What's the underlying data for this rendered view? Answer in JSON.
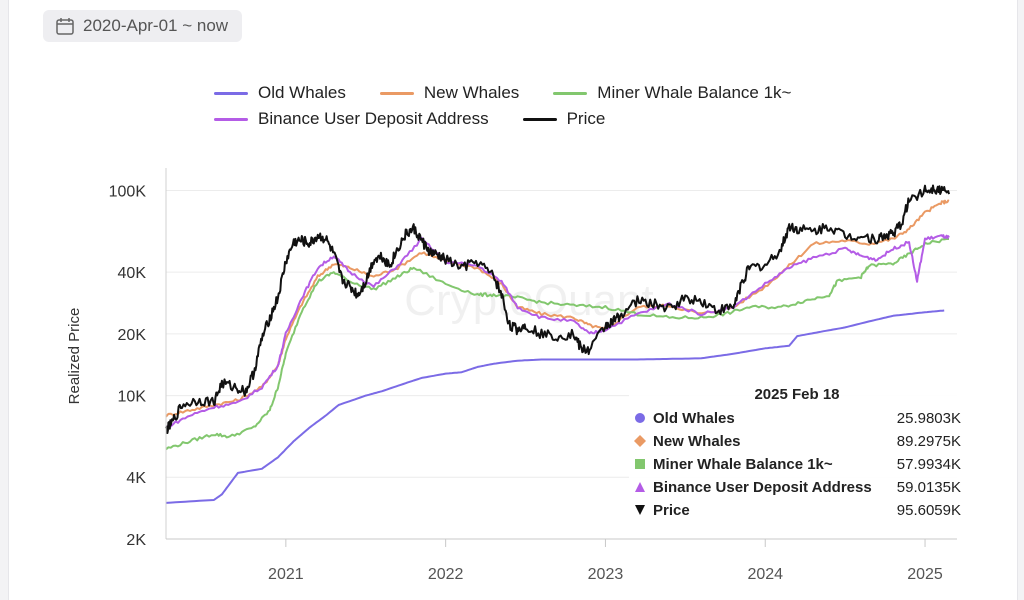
{
  "date_range": {
    "label": "2020-Apr-01 ~ now",
    "icon": "calendar-icon"
  },
  "watermark": "CryptoQuant",
  "tooltip": {
    "date": "2025 Feb 18",
    "rows": [
      {
        "name": "Old Whales",
        "value": "25.9803K",
        "marker": "circle",
        "color": "#7b6be6"
      },
      {
        "name": "New Whales",
        "value": "89.2975K",
        "marker": "diamond",
        "color": "#ea9a64"
      },
      {
        "name": "Miner Whale Balance 1k~",
        "value": "57.9934K",
        "marker": "square",
        "color": "#82c76e"
      },
      {
        "name": "Binance User Deposit Address",
        "value": "59.0135K",
        "marker": "triangle-up",
        "color": "#b45ce6"
      },
      {
        "name": "Price",
        "value": "95.6059K",
        "marker": "triangle-down",
        "color": "#111111"
      }
    ]
  },
  "chart_data": {
    "type": "line",
    "scale": "log",
    "ylabel": "Realized Price",
    "xlabel": "",
    "ylim": [
      2000,
      110000
    ],
    "xlim": [
      2020.25,
      2025.2
    ],
    "y_ticks": [
      2000,
      4000,
      10000,
      20000,
      40000,
      100000
    ],
    "y_tick_labels": [
      "2K",
      "4K",
      "10K",
      "20K",
      "40K",
      "100K"
    ],
    "x_ticks": [
      2021,
      2022,
      2023,
      2024,
      2025
    ],
    "x_tick_labels": [
      "2021",
      "2022",
      "2023",
      "2024",
      "2025"
    ],
    "series": [
      {
        "name": "Old Whales",
        "color": "#7b6be6",
        "x": [
          2020.25,
          2020.55,
          2020.6,
          2020.7,
          2020.85,
          2020.95,
          2021.05,
          2021.15,
          2021.25,
          2021.33,
          2021.5,
          2021.6,
          2021.75,
          2021.85,
          2022.0,
          2022.1,
          2022.2,
          2022.3,
          2022.45,
          2022.6,
          2022.8,
          2023.0,
          2023.2,
          2023.4,
          2023.6,
          2023.8,
          2024.0,
          2024.15,
          2024.2,
          2024.35,
          2024.5,
          2024.65,
          2024.8,
          2025.0,
          2025.12
        ],
        "y": [
          3000,
          3100,
          3300,
          4200,
          4400,
          5000,
          6000,
          7000,
          8000,
          9000,
          10000,
          10500,
          11500,
          12200,
          12800,
          13000,
          13800,
          14300,
          14800,
          15000,
          15000,
          15000,
          15000,
          15100,
          15200,
          16000,
          17000,
          17500,
          19500,
          20500,
          21500,
          23000,
          24500,
          25500,
          26000
        ]
      },
      {
        "name": "New Whales",
        "color": "#ea9a64",
        "x": [
          2020.25,
          2020.4,
          2020.55,
          2020.7,
          2020.85,
          2020.95,
          2021.0,
          2021.1,
          2021.2,
          2021.3,
          2021.4,
          2021.55,
          2021.7,
          2021.85,
          2022.0,
          2022.2,
          2022.35,
          2022.45,
          2022.6,
          2022.8,
          2022.9,
          2023.0,
          2023.2,
          2023.4,
          2023.6,
          2023.8,
          2024.0,
          2024.15,
          2024.3,
          2024.5,
          2024.65,
          2024.8,
          2024.9,
          2025.0,
          2025.1,
          2025.15
        ],
        "y": [
          8000,
          8500,
          9000,
          9500,
          11000,
          14000,
          19000,
          28000,
          38000,
          44000,
          42000,
          38000,
          42000,
          50000,
          45000,
          42000,
          35000,
          27000,
          25000,
          24000,
          22000,
          21000,
          27000,
          27500,
          25000,
          27000,
          34000,
          43000,
          55000,
          57000,
          55000,
          58000,
          65000,
          78000,
          87000,
          89000
        ]
      },
      {
        "name": "Miner Whale Balance 1k~",
        "color": "#82c76e",
        "x": [
          2020.25,
          2020.4,
          2020.55,
          2020.65,
          2020.8,
          2020.9,
          2020.95,
          2021.0,
          2021.1,
          2021.2,
          2021.3,
          2021.4,
          2021.55,
          2021.7,
          2021.8,
          2022.0,
          2022.2,
          2022.3,
          2022.45,
          2022.6,
          2022.8,
          2023.0,
          2023.2,
          2023.4,
          2023.6,
          2023.75,
          2023.9,
          2024.1,
          2024.25,
          2024.4,
          2024.45,
          2024.6,
          2024.65,
          2024.8,
          2024.9,
          2025.0,
          2025.15
        ],
        "y": [
          5500,
          6000,
          6500,
          6300,
          7000,
          8500,
          11000,
          16000,
          26000,
          36000,
          40000,
          36000,
          33000,
          38000,
          42000,
          35000,
          31000,
          31000,
          30000,
          28500,
          27500,
          27000,
          25000,
          24000,
          24000,
          25000,
          27000,
          27000,
          29000,
          31000,
          36000,
          38000,
          43000,
          44000,
          49000,
          55000,
          58000
        ]
      },
      {
        "name": "Binance User Deposit Address",
        "color": "#b45ce6",
        "x": [
          2020.25,
          2020.4,
          2020.55,
          2020.7,
          2020.85,
          2020.95,
          2021.0,
          2021.1,
          2021.2,
          2021.3,
          2021.4,
          2021.55,
          2021.7,
          2021.85,
          2022.0,
          2022.2,
          2022.35,
          2022.45,
          2022.6,
          2022.8,
          2022.9,
          2023.0,
          2023.2,
          2023.4,
          2023.6,
          2023.8,
          2024.0,
          2024.15,
          2024.3,
          2024.5,
          2024.6,
          2024.7,
          2024.8,
          2024.9,
          2024.95,
          2025.0,
          2025.1,
          2025.15
        ],
        "y": [
          7000,
          8000,
          8800,
          9200,
          11000,
          14000,
          20000,
          30000,
          42000,
          48000,
          40000,
          34000,
          43000,
          58000,
          45000,
          43000,
          36000,
          27000,
          24000,
          23000,
          20000,
          21000,
          25000,
          28000,
          25000,
          27000,
          35000,
          42000,
          47000,
          52000,
          48000,
          46000,
          52000,
          56000,
          36000,
          58000,
          60000,
          59000
        ]
      },
      {
        "name": "Price",
        "color": "#111111",
        "x": [
          2020.25,
          2020.28,
          2020.35,
          2020.45,
          2020.55,
          2020.6,
          2020.68,
          2020.75,
          2020.8,
          2020.85,
          2020.9,
          2020.95,
          2021.0,
          2021.05,
          2021.1,
          2021.15,
          2021.2,
          2021.25,
          2021.3,
          2021.35,
          2021.4,
          2021.45,
          2021.5,
          2021.55,
          2021.6,
          2021.65,
          2021.7,
          2021.75,
          2021.8,
          2021.85,
          2021.9,
          2021.95,
          2022.0,
          2022.1,
          2022.2,
          2022.3,
          2022.35,
          2022.4,
          2022.45,
          2022.5,
          2022.6,
          2022.7,
          2022.8,
          2022.85,
          2022.9,
          2023.0,
          2023.05,
          2023.1,
          2023.2,
          2023.3,
          2023.4,
          2023.5,
          2023.6,
          2023.7,
          2023.8,
          2023.85,
          2023.9,
          2024.0,
          2024.1,
          2024.15,
          2024.2,
          2024.3,
          2024.4,
          2024.5,
          2024.6,
          2024.7,
          2024.75,
          2024.8,
          2024.85,
          2024.9,
          2025.0,
          2025.05,
          2025.1,
          2025.15
        ],
        "y": [
          6800,
          7200,
          9000,
          9500,
          9300,
          11500,
          11000,
          10500,
          13000,
          19000,
          24000,
          30000,
          45000,
          56000,
          57000,
          55000,
          60000,
          58000,
          49000,
          37000,
          34000,
          31000,
          36000,
          46000,
          48000,
          43000,
          52000,
          61000,
          65000,
          57000,
          50000,
          48000,
          46000,
          42000,
          45000,
          38000,
          31000,
          22000,
          21000,
          22000,
          20000,
          19500,
          20000,
          16800,
          16700,
          22000,
          23000,
          25000,
          29000,
          28000,
          26500,
          30000,
          29000,
          26000,
          27000,
          35000,
          42000,
          43000,
          52000,
          67000,
          65000,
          63000,
          67000,
          60000,
          60000,
          58000,
          60000,
          62000,
          68000,
          90000,
          100000,
          103000,
          101000,
          96000
        ]
      }
    ]
  }
}
